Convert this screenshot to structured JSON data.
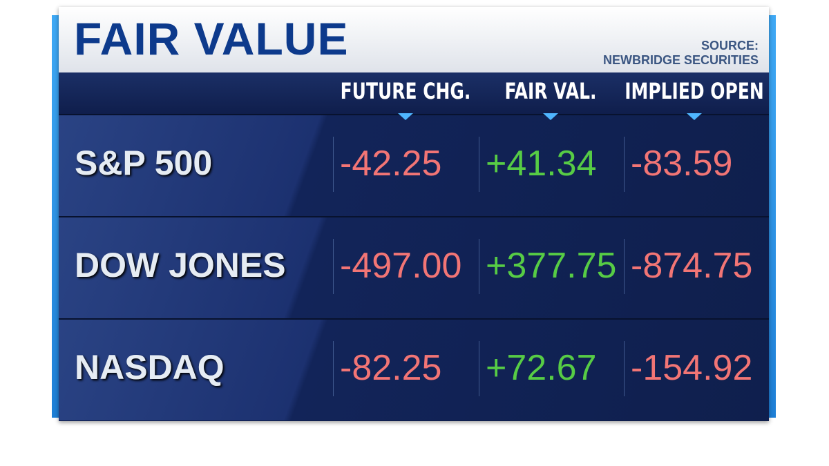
{
  "header": {
    "title": "FAIR VALUE",
    "source_label": "SOURCE:",
    "source": "NEWBRIDGE SECURITIES"
  },
  "table": {
    "columns": [
      "FUTURE CHG.",
      "FAIR VAL.",
      "IMPLIED OPEN"
    ],
    "rows": [
      [
        "S&P 500",
        "-42.25",
        "+41.34",
        "-83.59"
      ],
      [
        "DOW JONES",
        "-497.00",
        "+377.75",
        "-874.75"
      ],
      [
        "NASDAQ",
        "-82.25",
        "+72.67",
        "-154.92"
      ]
    ]
  }
}
